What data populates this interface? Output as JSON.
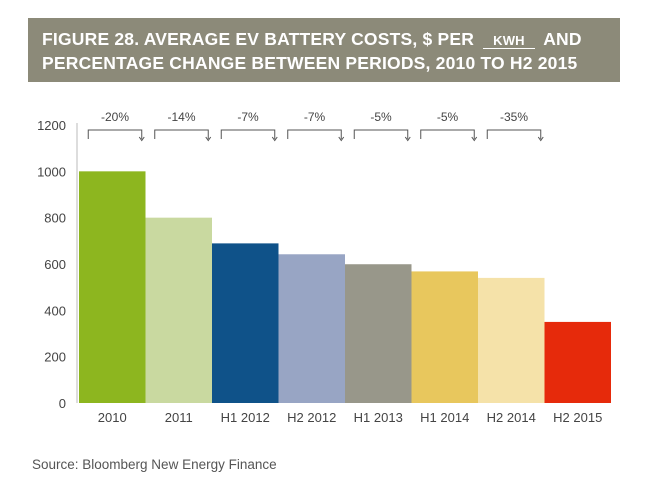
{
  "title": {
    "line1_prefix": "FIGURE 28. AVERAGE EV BATTERY COSTS, $ PER",
    "unit": "KWH",
    "line1_suffix": "AND",
    "line2": "PERCENTAGE CHANGE BETWEEN PERIODS, 2010 TO H2 2015"
  },
  "source": "Source: Bloomberg New Energy Finance",
  "chart_data": {
    "type": "bar",
    "categories": [
      "2010",
      "2011",
      "H1 2012",
      "H2 2012",
      "H1 2013",
      "H1 2014",
      "H2 2014",
      "H2 2015"
    ],
    "values": [
      1000,
      800,
      689,
      642,
      599,
      568,
      540,
      350
    ],
    "colors": [
      "#8db61f",
      "#c9d9a0",
      "#0f5289",
      "#98a5c4",
      "#98978a",
      "#e8c75d",
      "#f5e2a9",
      "#e62a0b"
    ],
    "change_labels": [
      "-20%",
      "-14%",
      "-7%",
      "-7%",
      "-5%",
      "-5%",
      "-35%"
    ],
    "yticks": [
      0,
      200,
      400,
      600,
      800,
      1000,
      1200
    ],
    "ylim": [
      0,
      1200
    ],
    "grid": false
  }
}
